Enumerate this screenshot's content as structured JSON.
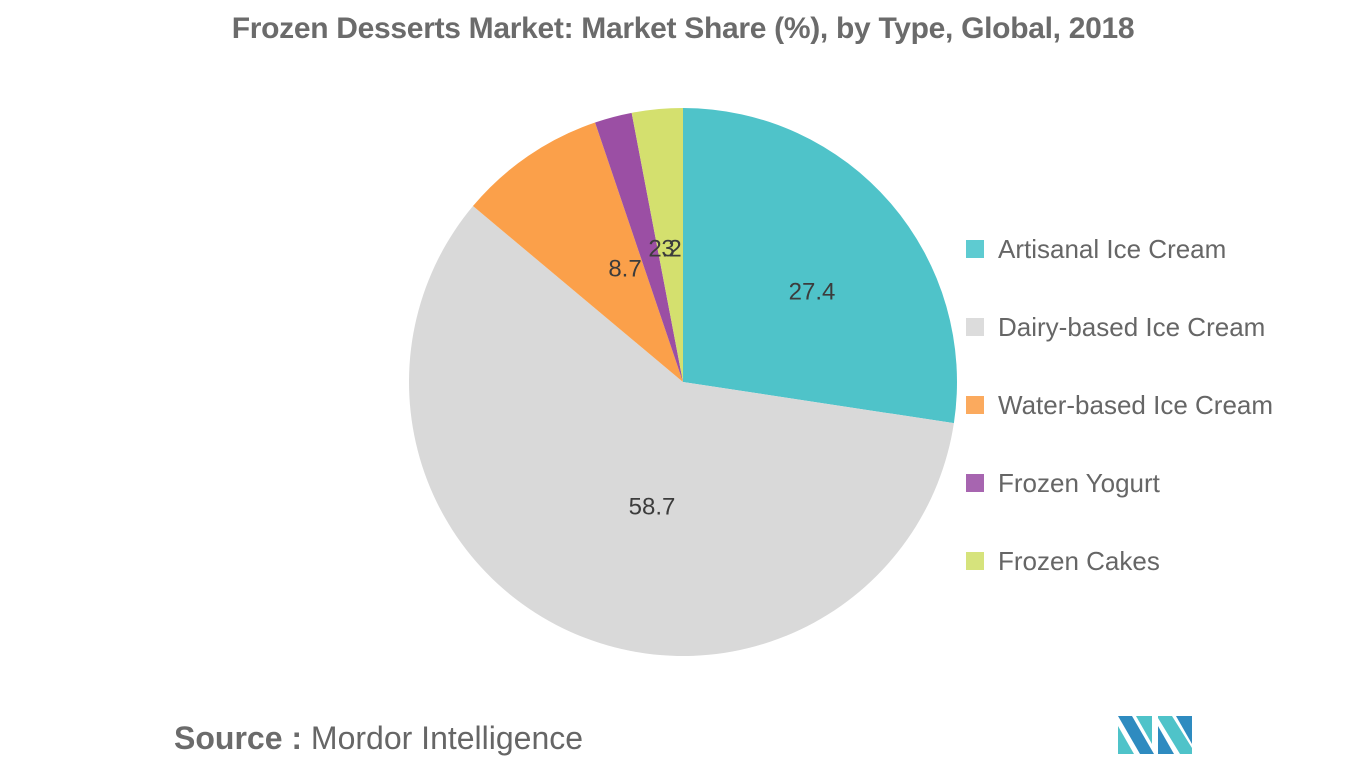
{
  "title": "Frozen Desserts Market: Market Share (%), by Type, Global, 2018",
  "source": {
    "label": "Source :",
    "value": "Mordor Intelligence"
  },
  "chart_data": {
    "type": "pie",
    "title": "Frozen Desserts Market: Market Share (%), by Type, Global, 2018",
    "categories": [
      "Artisanal Ice Cream",
      "Dairy-based Ice Cream",
      "Water-based Ice Cream",
      "Frozen Yogurt",
      "Frozen Cakes"
    ],
    "values": [
      27.4,
      58.7,
      8.7,
      2.2,
      3
    ],
    "labels": [
      "27.4",
      "58.7",
      "8.7",
      "2.2",
      "3"
    ],
    "colors": [
      "#4fc3c9",
      "#d9d9d9",
      "#fba04a",
      "#9b4fa4",
      "#d4e06e"
    ],
    "legend_position": "right",
    "start_angle": "12 o'clock, clockwise"
  },
  "legend": [
    {
      "label": "Artisanal Ice Cream",
      "color": "#5ecbd1"
    },
    {
      "label": "Dairy-based Ice Cream",
      "color": "#dcdcdc"
    },
    {
      "label": "Water-based Ice Cream",
      "color": "#fbaa5e"
    },
    {
      "label": "Frozen Yogurt",
      "color": "#a765b0"
    },
    {
      "label": "Frozen Cakes",
      "color": "#d6e37c"
    }
  ]
}
